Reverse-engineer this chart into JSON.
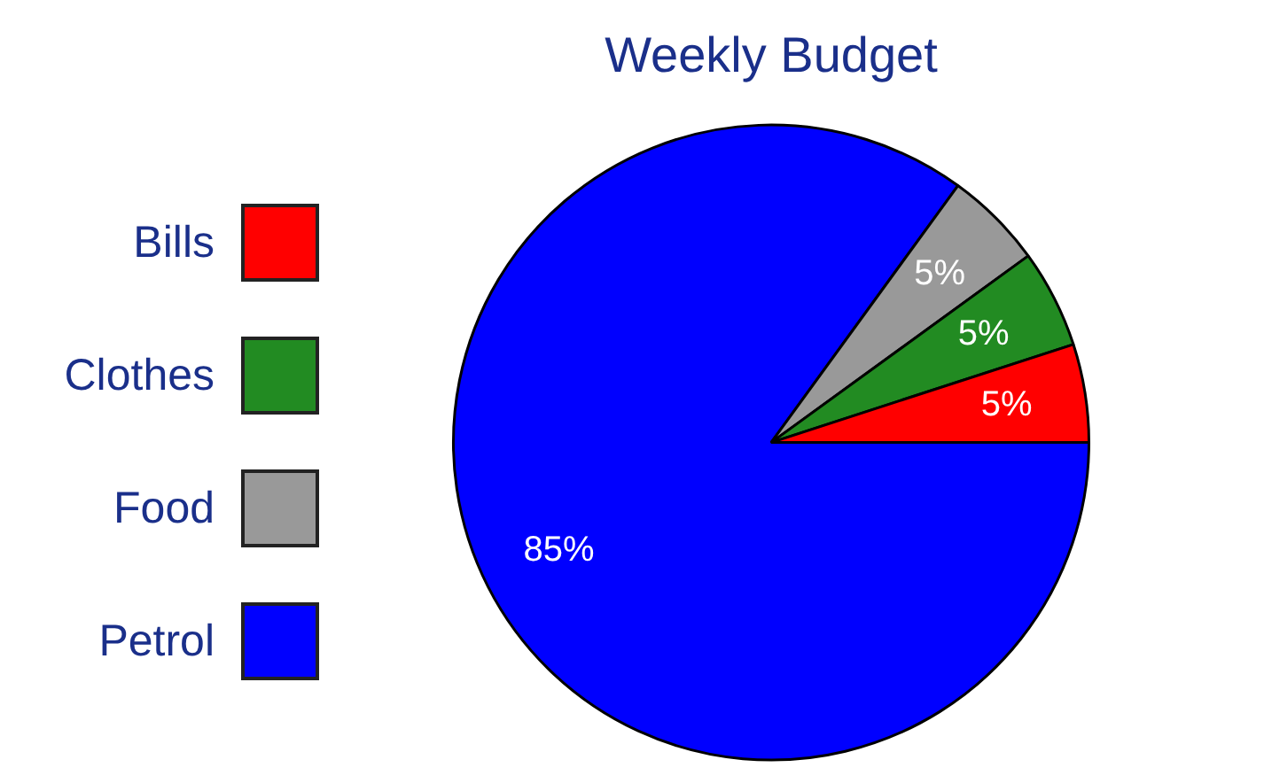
{
  "chart_data": {
    "type": "pie",
    "title": "Weekly Budget",
    "categories": [
      "Bills",
      "Clothes",
      "Food",
      "Petrol"
    ],
    "values": [
      5,
      5,
      5,
      85
    ],
    "value_labels": [
      "5%",
      "5%",
      "5%",
      "85%"
    ],
    "colors": [
      "#ff0000",
      "#228b22",
      "#999999",
      "#0000ff"
    ],
    "legend": "left"
  }
}
